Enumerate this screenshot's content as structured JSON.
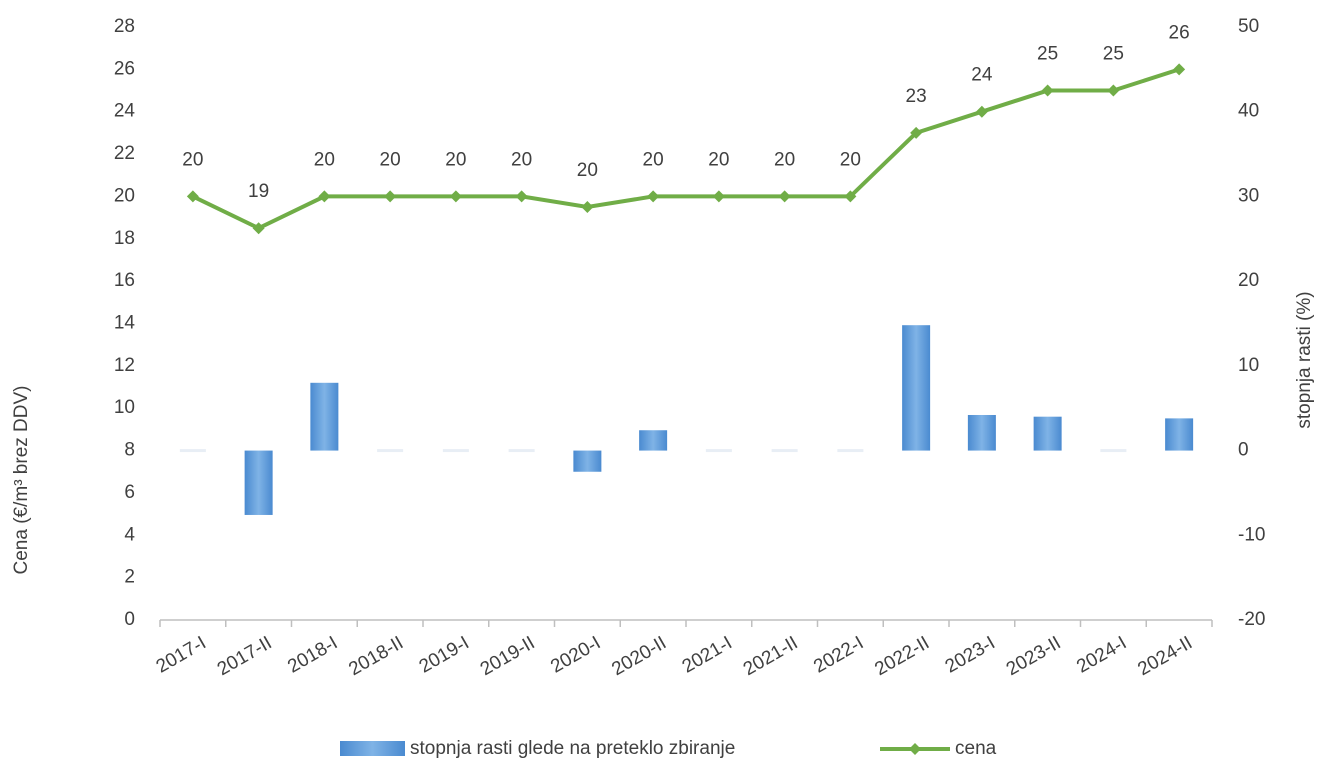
{
  "chart_data": {
    "type": "bar-line",
    "y_label": "Cena (€/m³ brez DDV)",
    "y2_label": "stopnja rasti (%)",
    "categories": [
      "2017-I",
      "2017-II",
      "2018-I",
      "2018-II",
      "2019-I",
      "2019-II",
      "2020-I",
      "2020-II",
      "2021-I",
      "2021-II",
      "2022-I",
      "2022-II",
      "2023-I",
      "2023-II",
      "2024-I",
      "2024-II"
    ],
    "series": [
      {
        "name": "stopnja rasti glede na preteklo zbiranje",
        "type": "bar",
        "axis": "y2",
        "color": "#5b9bd5",
        "values": [
          0,
          -7.6,
          8.0,
          0,
          0,
          0,
          -2.5,
          2.4,
          0,
          0,
          0,
          14.8,
          4.2,
          4.0,
          0,
          3.8
        ]
      },
      {
        "name": "cena",
        "type": "line",
        "axis": "y",
        "color": "#70ad47",
        "values": [
          20,
          18.5,
          20,
          20,
          20,
          20,
          19.5,
          20,
          20,
          20,
          20,
          23,
          24,
          25,
          25,
          26
        ],
        "value_labels": [
          "20",
          "19",
          "20",
          "20",
          "20",
          "20",
          "20",
          "20",
          "20",
          "20",
          "20",
          "23",
          "24",
          "25",
          "25",
          "26"
        ]
      }
    ],
    "ylim": [
      0,
      28
    ],
    "yticks": [
      0,
      2,
      4,
      6,
      8,
      10,
      12,
      14,
      16,
      18,
      20,
      22,
      24,
      26,
      28
    ],
    "y2lim": [
      -20,
      50
    ],
    "y2ticks": [
      -20,
      -10,
      0,
      10,
      20,
      30,
      40,
      50
    ]
  }
}
